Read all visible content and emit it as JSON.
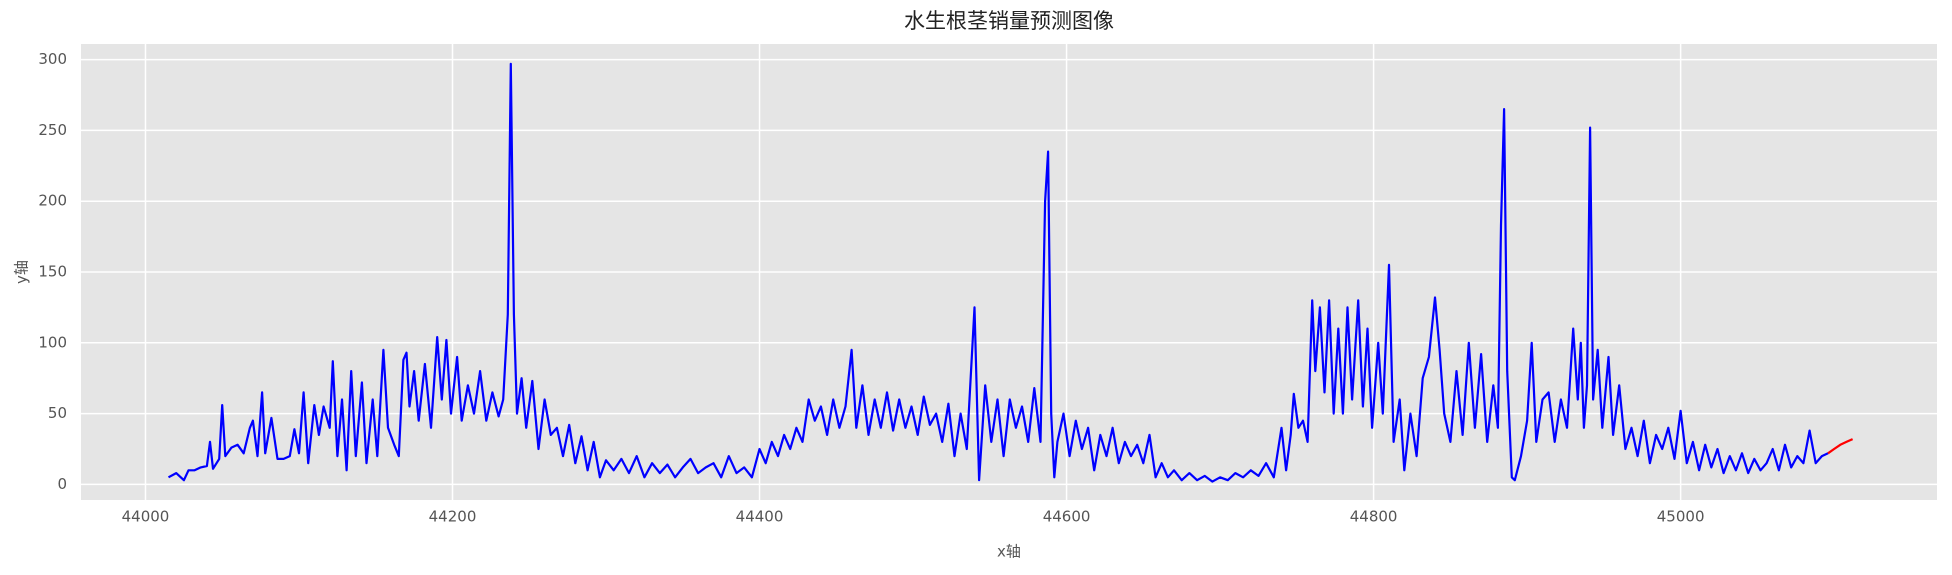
{
  "chart_data": {
    "type": "line",
    "title": "水生根茎销量预测图像",
    "x_label": "x轴",
    "y_label": "y轴",
    "xlim": [
      43958,
      45167
    ],
    "ylim": [
      -11,
      311
    ],
    "xticks": [
      44000,
      44200,
      44400,
      44600,
      44800,
      45000
    ],
    "yticks": [
      0,
      50,
      100,
      150,
      200,
      250,
      300
    ],
    "grid": true,
    "series": [
      {
        "color": "#0000ff",
        "x": [
          44015,
          44020,
          44025,
          44028,
          44032,
          44036,
          44040,
          44042,
          44044,
          44048,
          44050,
          44052,
          44056,
          44060,
          44064,
          44068,
          44070,
          44073,
          44076,
          44078,
          44082,
          44086,
          44090,
          44094,
          44097,
          44100,
          44103,
          44106,
          44110,
          44113,
          44116,
          44120,
          44122,
          44125,
          44128,
          44131,
          44134,
          44137,
          44141,
          44144,
          44148,
          44151,
          44155,
          44158,
          44162,
          44165,
          44168,
          44170,
          44172,
          44175,
          44178,
          44182,
          44186,
          44190,
          44193,
          44196,
          44199,
          44203,
          44206,
          44210,
          44214,
          44218,
          44222,
          44226,
          44230,
          44233,
          44236,
          44238,
          44240,
          44242,
          44245,
          44248,
          44252,
          44256,
          44260,
          44264,
          44268,
          44272,
          44276,
          44280,
          44284,
          44288,
          44292,
          44296,
          44300,
          44305,
          44310,
          44315,
          44320,
          44325,
          44330,
          44335,
          44340,
          44345,
          44350,
          44355,
          44360,
          44365,
          44370,
          44375,
          44380,
          44385,
          44390,
          44395,
          44400,
          44404,
          44408,
          44412,
          44416,
          44420,
          44424,
          44428,
          44432,
          44436,
          44440,
          44444,
          44448,
          44452,
          44456,
          44460,
          44463,
          44467,
          44471,
          44475,
          44479,
          44483,
          44487,
          44491,
          44495,
          44499,
          44503,
          44507,
          44511,
          44515,
          44519,
          44523,
          44527,
          44531,
          44535,
          44540,
          44543,
          44547,
          44551,
          44555,
          44559,
          44563,
          44567,
          44571,
          44575,
          44579,
          44583,
          44586,
          44588,
          44590,
          44592,
          44594,
          44598,
          44602,
          44606,
          44610,
          44614,
          44618,
          44622,
          44626,
          44630,
          44634,
          44638,
          44642,
          44646,
          44650,
          44654,
          44658,
          44662,
          44666,
          44670,
          44675,
          44680,
          44685,
          44690,
          44695,
          44700,
          44705,
          44710,
          44715,
          44720,
          44725,
          44730,
          44735,
          44740,
          44743,
          44746,
          44748,
          44751,
          44754,
          44757,
          44760,
          44762,
          44765,
          44768,
          44771,
          44774,
          44777,
          44780,
          44783,
          44786,
          44790,
          44793,
          44796,
          44799,
          44803,
          44806,
          44810,
          44813,
          44817,
          44820,
          44824,
          44828,
          44832,
          44836,
          44840,
          44843,
          44846,
          44850,
          44854,
          44858,
          44862,
          44866,
          44870,
          44874,
          44878,
          44881,
          44883,
          44885,
          44887,
          44890,
          44892,
          44896,
          44900,
          44903,
          44906,
          44910,
          44914,
          44918,
          44922,
          44926,
          44930,
          44933,
          44935,
          44937,
          44939,
          44941,
          44943,
          44946,
          44949,
          44953,
          44956,
          44960,
          44964,
          44968,
          44972,
          44976,
          44980,
          44984,
          44988,
          44992,
          44996,
          45000,
          45004,
          45008,
          45012,
          45016,
          45020,
          45024,
          45028,
          45032,
          45036,
          45040,
          45044,
          45048,
          45052,
          45056,
          45060,
          45064,
          45068,
          45072,
          45076,
          45080,
          45084,
          45088,
          45092,
          45096
        ],
        "values": [
          5,
          8,
          3,
          10,
          10,
          12,
          13,
          30,
          11,
          18,
          56,
          20,
          26,
          28,
          22,
          40,
          45,
          20,
          65,
          22,
          47,
          18,
          18,
          20,
          39,
          22,
          65,
          15,
          56,
          35,
          55,
          40,
          87,
          20,
          60,
          10,
          80,
          20,
          72,
          15,
          60,
          20,
          95,
          40,
          28,
          20,
          88,
          93,
          55,
          80,
          45,
          85,
          40,
          104,
          60,
          102,
          50,
          90,
          45,
          70,
          50,
          80,
          45,
          65,
          48,
          60,
          120,
          297,
          120,
          50,
          75,
          40,
          73,
          25,
          60,
          35,
          40,
          20,
          42,
          15,
          34,
          10,
          30,
          5,
          17,
          10,
          18,
          8,
          20,
          5,
          15,
          8,
          14,
          5,
          12,
          18,
          8,
          12,
          15,
          5,
          20,
          8,
          12,
          5,
          25,
          15,
          30,
          20,
          35,
          25,
          40,
          30,
          60,
          45,
          55,
          35,
          60,
          40,
          55,
          95,
          40,
          70,
          35,
          60,
          40,
          65,
          38,
          60,
          40,
          55,
          35,
          62,
          42,
          50,
          30,
          57,
          20,
          50,
          25,
          125,
          3,
          70,
          30,
          60,
          20,
          60,
          40,
          55,
          30,
          68,
          30,
          200,
          235,
          50,
          5,
          30,
          50,
          20,
          45,
          25,
          40,
          10,
          35,
          20,
          40,
          15,
          30,
          20,
          28,
          15,
          35,
          5,
          15,
          5,
          10,
          3,
          8,
          3,
          6,
          2,
          5,
          3,
          8,
          5,
          10,
          6,
          15,
          5,
          40,
          10,
          35,
          64,
          40,
          45,
          30,
          130,
          80,
          125,
          65,
          130,
          50,
          110,
          50,
          125,
          60,
          130,
          55,
          110,
          40,
          100,
          50,
          155,
          30,
          60,
          10,
          50,
          20,
          75,
          90,
          132,
          95,
          50,
          30,
          80,
          35,
          100,
          40,
          92,
          30,
          70,
          40,
          183,
          265,
          80,
          5,
          3,
          20,
          45,
          100,
          30,
          60,
          65,
          30,
          60,
          40,
          110,
          60,
          100,
          40,
          70,
          252,
          60,
          95,
          40,
          90,
          35,
          70,
          25,
          40,
          20,
          45,
          15,
          35,
          25,
          40,
          18,
          52,
          15,
          30,
          10,
          28,
          12,
          25,
          8,
          20,
          10,
          22,
          8,
          18,
          10,
          15,
          25,
          10,
          28,
          12,
          20,
          15,
          38,
          15,
          20,
          22
        ]
      },
      {
        "color": "#ff0000",
        "x": [
          45096,
          45100,
          45104,
          45108,
          45112
        ],
        "values": [
          22,
          25,
          28,
          30,
          32
        ]
      }
    ]
  }
}
